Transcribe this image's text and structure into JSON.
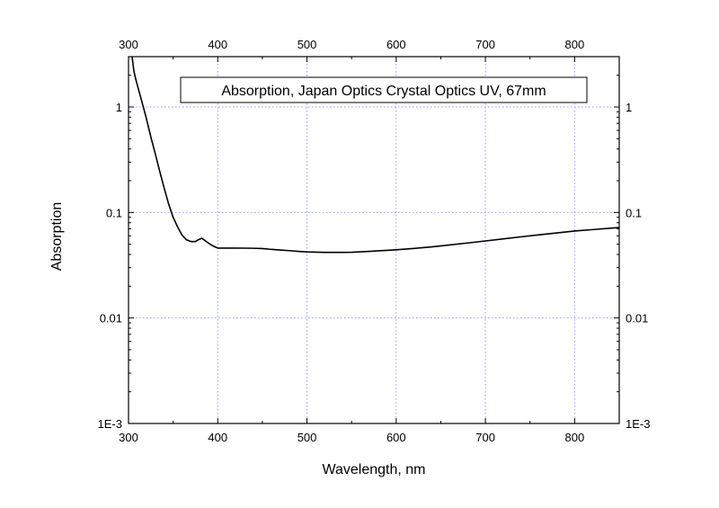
{
  "chart_data": {
    "type": "line",
    "title": "Absorption, Japan Optics Crystal Optics UV, 67mm",
    "xlabel": "Wavelength, nm",
    "ylabel": "Absorption",
    "xlim": [
      300,
      850
    ],
    "ylim": [
      0.001,
      3
    ],
    "y_scale": "log",
    "grid": true,
    "legend_position": "top-right",
    "colors": {
      "line": "#000000",
      "grid": "#9a9aff",
      "frame": "#000000"
    },
    "x_ticks": [
      {
        "value": 300,
        "label": "300"
      },
      {
        "value": 400,
        "label": "400"
      },
      {
        "value": 500,
        "label": "500"
      },
      {
        "value": 600,
        "label": "600"
      },
      {
        "value": 700,
        "label": "700"
      },
      {
        "value": 800,
        "label": "800"
      }
    ],
    "y_ticks": [
      {
        "value": 0.001,
        "label": "1E-3"
      },
      {
        "value": 0.01,
        "label": "0.01"
      },
      {
        "value": 0.1,
        "label": "0.1"
      },
      {
        "value": 1,
        "label": "1"
      }
    ],
    "series": [
      {
        "x": [
          304,
          306,
          308,
          310,
          315,
          320,
          325,
          330,
          335,
          340,
          345,
          350,
          355,
          360,
          365,
          370,
          375,
          378,
          382,
          386,
          390,
          395,
          400,
          405,
          410,
          420,
          430,
          440,
          450,
          460,
          470,
          480,
          490,
          500,
          510,
          520,
          530,
          540,
          550,
          560,
          570,
          580,
          590,
          600,
          620,
          640,
          660,
          680,
          700,
          720,
          740,
          760,
          780,
          800,
          820,
          840,
          850
        ],
        "y": [
          3.0,
          2.2,
          1.85,
          1.6,
          1.12,
          0.78,
          0.52,
          0.36,
          0.245,
          0.17,
          0.12,
          0.09,
          0.073,
          0.061,
          0.055,
          0.053,
          0.053,
          0.055,
          0.057,
          0.054,
          0.051,
          0.048,
          0.046,
          0.046,
          0.046,
          0.046,
          0.0459,
          0.0458,
          0.0455,
          0.0447,
          0.0441,
          0.0435,
          0.0428,
          0.0423,
          0.0421,
          0.0419,
          0.0419,
          0.0419,
          0.042,
          0.0424,
          0.0428,
          0.0433,
          0.0438,
          0.0443,
          0.0456,
          0.0472,
          0.0492,
          0.0514,
          0.0537,
          0.0562,
          0.0588,
          0.0614,
          0.064,
          0.0667,
          0.0688,
          0.071,
          0.072
        ]
      }
    ]
  }
}
